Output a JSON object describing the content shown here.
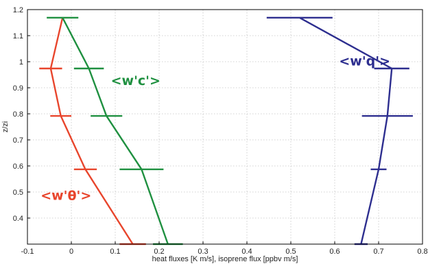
{
  "chart_data": {
    "type": "line",
    "title": "",
    "xlabel": "heat fluxes [K m/s], isoprene flux [ppbv m/s]",
    "ylabel": "z/zi",
    "xlim": [
      -0.1,
      0.8
    ],
    "ylim": [
      0.3,
      1.2
    ],
    "grid": true,
    "x_ticks": [
      "-0.1",
      "0",
      "0.1",
      "0.2",
      "0.3",
      "0.4",
      "0.5",
      "0.6",
      "0.7",
      "0.8"
    ],
    "y_ticks": [
      "0.4",
      "0.5",
      "0.6",
      "0.7",
      "0.8",
      "0.9",
      "1",
      "1.1",
      "1.2"
    ],
    "series": [
      {
        "name": "<w'θ'>",
        "color": "#e8452c",
        "points": [
          {
            "z": 0.3,
            "x": 0.14,
            "err": 0.03
          },
          {
            "z": 0.587,
            "x": 0.032,
            "err": 0.026
          },
          {
            "z": 0.792,
            "x": -0.024,
            "err": 0.024
          },
          {
            "z": 0.974,
            "x": -0.047,
            "err": 0.026
          },
          {
            "z": 1.169,
            "x": -0.02,
            "err": 0.0
          }
        ]
      },
      {
        "name": "<w'c'>",
        "color": "#1f9040",
        "points": [
          {
            "z": 0.3,
            "x": 0.22,
            "err": 0.034
          },
          {
            "z": 0.587,
            "x": 0.16,
            "err": 0.05
          },
          {
            "z": 0.792,
            "x": 0.08,
            "err": 0.036
          },
          {
            "z": 0.974,
            "x": 0.04,
            "err": 0.034
          },
          {
            "z": 1.169,
            "x": -0.02,
            "err": 0.036
          }
        ]
      },
      {
        "name": "<w'q'>",
        "color": "#2d2e8f",
        "points": [
          {
            "z": 0.3,
            "x": 0.66,
            "err": 0.015
          },
          {
            "z": 0.587,
            "x": 0.7,
            "err": 0.018
          },
          {
            "z": 0.792,
            "x": 0.72,
            "err": 0.058
          },
          {
            "z": 0.974,
            "x": 0.73,
            "err": 0.04
          },
          {
            "z": 1.169,
            "x": 0.52,
            "err": 0.075
          }
        ]
      }
    ],
    "annotations": [
      {
        "text": "<w'θ'>",
        "color": "#e8452c",
        "x": -0.07,
        "z": 0.47
      },
      {
        "text": "<w'c'>",
        "color": "#1f9040",
        "x": 0.09,
        "z": 0.91
      },
      {
        "text": "<w'q'>",
        "color": "#2d2e8f",
        "x": 0.61,
        "z": 0.985
      }
    ]
  }
}
